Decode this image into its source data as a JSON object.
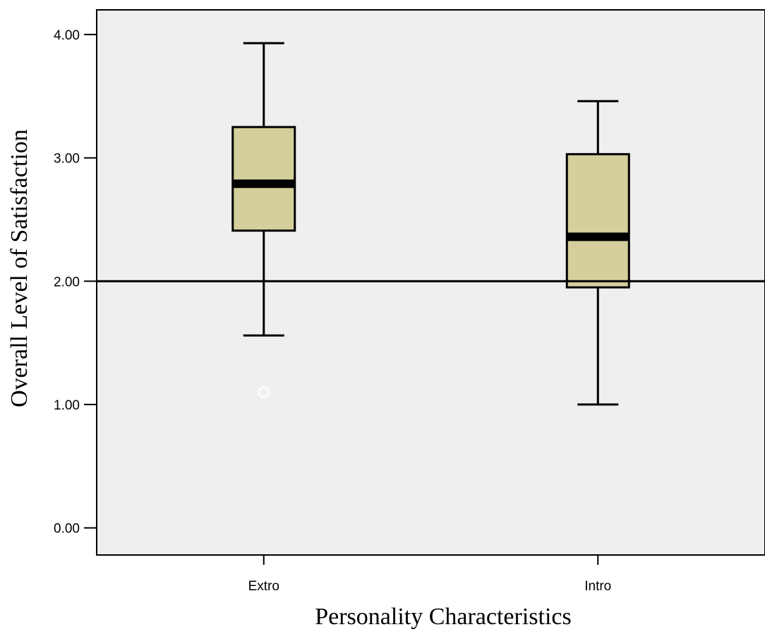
{
  "colors": {
    "plot_background": "#efefef",
    "box_fill": "#d4cf9b",
    "stroke": "#000000",
    "outlier_marker": "#ffffff"
  },
  "chart_data": {
    "type": "boxplot",
    "title": "",
    "xlabel": "Personality Characteristics",
    "ylabel": "Overall Level of Satisfaction",
    "ylim": [
      -0.22,
      4.2
    ],
    "yticks": [
      "0.00",
      "1.00",
      "2.00",
      "3.00",
      "4.00"
    ],
    "ytick_values": [
      0,
      1,
      2,
      3,
      4
    ],
    "reference_line": 2.0,
    "grid": false,
    "legend": "none",
    "categories": [
      "Extro",
      "Intro"
    ],
    "boxes": [
      {
        "category": "Extro",
        "whisker_low": 1.56,
        "q1": 2.41,
        "median": 2.79,
        "q3": 3.25,
        "whisker_high": 3.93,
        "outliers": [
          1.1
        ]
      },
      {
        "category": "Intro",
        "whisker_low": 1.0,
        "q1": 1.95,
        "median": 2.36,
        "q3": 3.03,
        "whisker_high": 3.46,
        "outliers": []
      }
    ]
  }
}
